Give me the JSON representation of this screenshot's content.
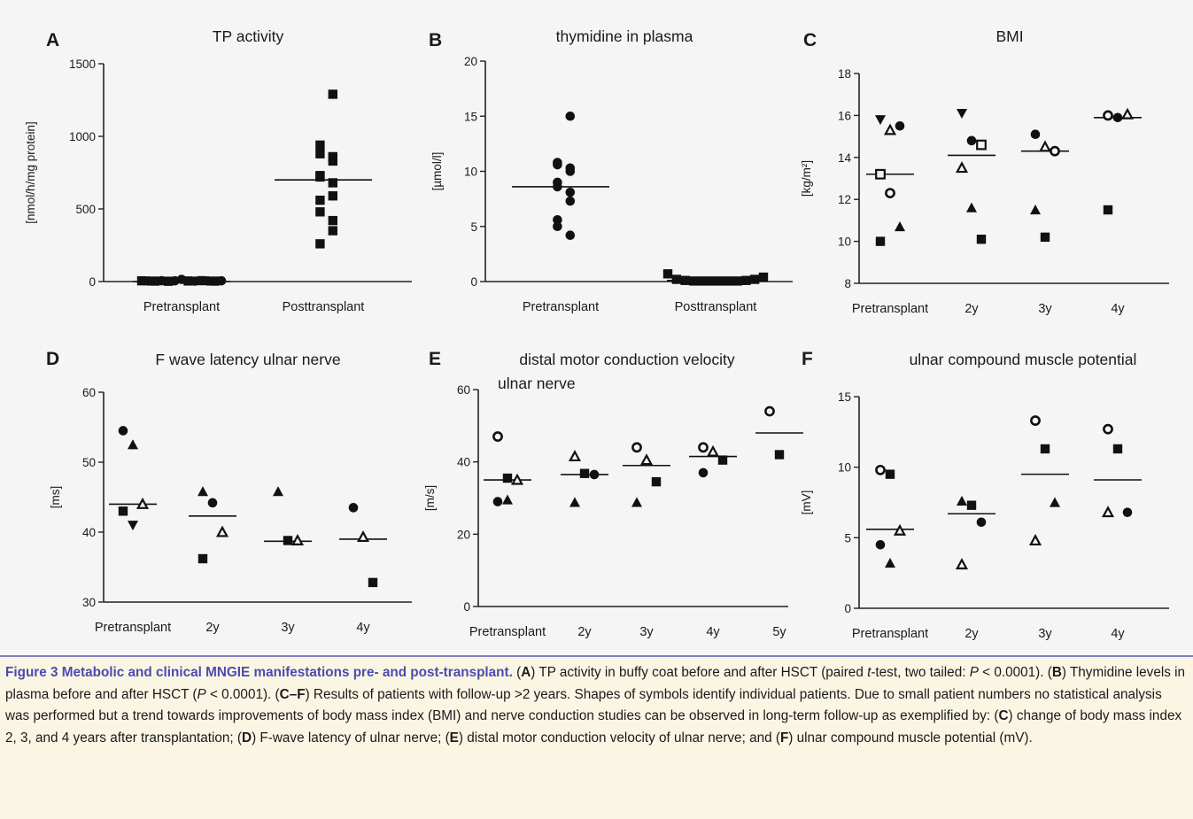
{
  "chart_data": [
    {
      "letter": "A",
      "type": "scatter",
      "title": "TP activity",
      "ylabel": "[nmol/h/mg protein]",
      "ylim": [
        0,
        1500
      ],
      "yticks": [
        0,
        500,
        1000,
        1500
      ],
      "categories": [
        "Pretransplant",
        "Posttransplant"
      ],
      "points": [
        {
          "x": 0,
          "y": 5,
          "s": "square"
        },
        {
          "x": 0,
          "y": 4,
          "s": "circle"
        },
        {
          "x": 0,
          "y": 3,
          "s": "square"
        },
        {
          "x": 0,
          "y": 6,
          "s": "circle"
        },
        {
          "x": 0,
          "y": 2,
          "s": "square"
        },
        {
          "x": 0,
          "y": 5,
          "s": "circle"
        },
        {
          "x": 0,
          "y": 15,
          "s": "circle"
        },
        {
          "x": 0,
          "y": 4,
          "s": "square"
        },
        {
          "x": 0,
          "y": 3,
          "s": "circle"
        },
        {
          "x": 0,
          "y": 6,
          "s": "square"
        },
        {
          "x": 0,
          "y": 4,
          "s": "circle"
        },
        {
          "x": 0,
          "y": 3,
          "s": "square"
        },
        {
          "x": 0,
          "y": 5,
          "s": "circle"
        },
        {
          "x": 1,
          "y": 1290,
          "s": "square"
        },
        {
          "x": 1,
          "y": 940,
          "s": "square"
        },
        {
          "x": 1,
          "y": 880,
          "s": "square"
        },
        {
          "x": 1,
          "y": 860,
          "s": "square"
        },
        {
          "x": 1,
          "y": 830,
          "s": "square"
        },
        {
          "x": 1,
          "y": 730,
          "s": "square"
        },
        {
          "x": 1,
          "y": 720,
          "s": "square"
        },
        {
          "x": 1,
          "y": 680,
          "s": "square"
        },
        {
          "x": 1,
          "y": 590,
          "s": "square"
        },
        {
          "x": 1,
          "y": 560,
          "s": "square"
        },
        {
          "x": 1,
          "y": 480,
          "s": "square"
        },
        {
          "x": 1,
          "y": 420,
          "s": "square"
        },
        {
          "x": 1,
          "y": 350,
          "s": "square"
        },
        {
          "x": 1,
          "y": 260,
          "s": "square"
        }
      ],
      "means": [
        0,
        700
      ]
    },
    {
      "letter": "B",
      "type": "scatter",
      "title": "thymidine  in plasma",
      "ylabel": "[µmol/l]",
      "ylim": [
        0,
        20
      ],
      "yticks": [
        0,
        5,
        10,
        15,
        20
      ],
      "categories": [
        "Pretransplant",
        "Posttransplant"
      ],
      "points": [
        {
          "x": 0,
          "y": 15.0,
          "s": "circle"
        },
        {
          "x": 0,
          "y": 10.8,
          "s": "circle"
        },
        {
          "x": 0,
          "y": 10.6,
          "s": "circle"
        },
        {
          "x": 0,
          "y": 10.3,
          "s": "circle"
        },
        {
          "x": 0,
          "y": 10.0,
          "s": "circle"
        },
        {
          "x": 0,
          "y": 9.0,
          "s": "circle"
        },
        {
          "x": 0,
          "y": 8.6,
          "s": "circle"
        },
        {
          "x": 0,
          "y": 8.1,
          "s": "circle"
        },
        {
          "x": 0,
          "y": 7.3,
          "s": "circle"
        },
        {
          "x": 0,
          "y": 5.6,
          "s": "circle"
        },
        {
          "x": 0,
          "y": 5.0,
          "s": "circle"
        },
        {
          "x": 0,
          "y": 4.2,
          "s": "circle"
        },
        {
          "x": 1,
          "y": 0.7,
          "s": "square"
        },
        {
          "x": 1,
          "y": 0.2,
          "s": "square"
        },
        {
          "x": 1,
          "y": 0.1,
          "s": "square"
        },
        {
          "x": 1,
          "y": 0.05,
          "s": "square"
        },
        {
          "x": 1,
          "y": 0.05,
          "s": "square"
        },
        {
          "x": 1,
          "y": 0.05,
          "s": "square"
        },
        {
          "x": 1,
          "y": 0.05,
          "s": "square"
        },
        {
          "x": 1,
          "y": 0.05,
          "s": "square"
        },
        {
          "x": 1,
          "y": 0.05,
          "s": "square"
        },
        {
          "x": 1,
          "y": 0.1,
          "s": "square"
        },
        {
          "x": 1,
          "y": 0.2,
          "s": "square"
        },
        {
          "x": 1,
          "y": 0.4,
          "s": "square"
        }
      ],
      "means": [
        8.6,
        0.1
      ]
    },
    {
      "letter": "C",
      "type": "scatter",
      "title": "BMI",
      "ylabel": "[kg/m²]",
      "ylim": [
        8,
        18
      ],
      "yticks": [
        8,
        10,
        12,
        14,
        16,
        18
      ],
      "categories": [
        "Pretransplant",
        "2y",
        "3y",
        "4y"
      ],
      "points": [
        {
          "x": 0,
          "y": 15.8,
          "s": "triangle-down"
        },
        {
          "x": 0,
          "y": 15.3,
          "s": "triangle-open"
        },
        {
          "x": 0,
          "y": 15.5,
          "s": "circle"
        },
        {
          "x": 0,
          "y": 13.2,
          "s": "square-open"
        },
        {
          "x": 0,
          "y": 12.3,
          "s": "circle-open"
        },
        {
          "x": 0,
          "y": 10.7,
          "s": "triangle"
        },
        {
          "x": 0,
          "y": 10.0,
          "s": "square"
        },
        {
          "x": 1,
          "y": 16.1,
          "s": "triangle-down"
        },
        {
          "x": 1,
          "y": 14.8,
          "s": "circle"
        },
        {
          "x": 1,
          "y": 14.6,
          "s": "square-open"
        },
        {
          "x": 1,
          "y": 13.5,
          "s": "triangle-open"
        },
        {
          "x": 1,
          "y": 11.6,
          "s": "triangle"
        },
        {
          "x": 1,
          "y": 10.1,
          "s": "square"
        },
        {
          "x": 2,
          "y": 15.1,
          "s": "circle"
        },
        {
          "x": 2,
          "y": 14.5,
          "s": "triangle-open"
        },
        {
          "x": 2,
          "y": 14.3,
          "s": "circle-open"
        },
        {
          "x": 2,
          "y": 11.5,
          "s": "triangle"
        },
        {
          "x": 2,
          "y": 10.2,
          "s": "square"
        },
        {
          "x": 3,
          "y": 16.0,
          "s": "circle-open"
        },
        {
          "x": 3,
          "y": 15.9,
          "s": "circle"
        },
        {
          "x": 3,
          "y": 16.05,
          "s": "triangle-open"
        },
        {
          "x": 3,
          "y": 11.5,
          "s": "square"
        }
      ],
      "means": [
        13.2,
        14.1,
        14.3,
        15.9
      ]
    },
    {
      "letter": "D",
      "type": "scatter",
      "title": "F wave latency ulnar nerve",
      "ylabel": "[ms]",
      "ylim": [
        30,
        60
      ],
      "yticks": [
        30,
        40,
        50,
        60
      ],
      "categories": [
        "Pretransplant",
        "2y",
        "3y",
        "4y"
      ],
      "points": [
        {
          "x": 0,
          "y": 54.5,
          "s": "circle"
        },
        {
          "x": 0,
          "y": 52.5,
          "s": "triangle"
        },
        {
          "x": 0,
          "y": 44.0,
          "s": "triangle-open"
        },
        {
          "x": 0,
          "y": 43.0,
          "s": "square"
        },
        {
          "x": 0,
          "y": 41.0,
          "s": "triangle-down"
        },
        {
          "x": 1,
          "y": 45.8,
          "s": "triangle"
        },
        {
          "x": 1,
          "y": 44.2,
          "s": "circle"
        },
        {
          "x": 1,
          "y": 40.0,
          "s": "triangle-open"
        },
        {
          "x": 1,
          "y": 36.2,
          "s": "square"
        },
        {
          "x": 2,
          "y": 45.8,
          "s": "triangle"
        },
        {
          "x": 2,
          "y": 38.8,
          "s": "square"
        },
        {
          "x": 2,
          "y": 38.8,
          "s": "triangle-open"
        },
        {
          "x": 3,
          "y": 43.5,
          "s": "circle"
        },
        {
          "x": 3,
          "y": 39.3,
          "s": "triangle-open"
        },
        {
          "x": 3,
          "y": 32.8,
          "s": "square"
        }
      ],
      "means": [
        44.0,
        42.3,
        38.7,
        39.0
      ]
    },
    {
      "letter": "E",
      "type": "scatter",
      "title": "distal motor conduction velocity",
      "title2": "ulnar nerve",
      "ylabel": "[m/s]",
      "ylim": [
        0,
        60
      ],
      "yticks": [
        0,
        20,
        40,
        60
      ],
      "categories": [
        "Pretransplant",
        "2y",
        "3y",
        "4y",
        "5y"
      ],
      "points": [
        {
          "x": 0,
          "y": 47.0,
          "s": "circle-open"
        },
        {
          "x": 0,
          "y": 35.5,
          "s": "square"
        },
        {
          "x": 0,
          "y": 35.0,
          "s": "triangle-open"
        },
        {
          "x": 0,
          "y": 29.0,
          "s": "circle"
        },
        {
          "x": 0,
          "y": 29.5,
          "s": "triangle"
        },
        {
          "x": 1,
          "y": 41.5,
          "s": "triangle-open"
        },
        {
          "x": 1,
          "y": 36.8,
          "s": "square"
        },
        {
          "x": 1,
          "y": 36.5,
          "s": "circle"
        },
        {
          "x": 1,
          "y": 28.8,
          "s": "triangle"
        },
        {
          "x": 2,
          "y": 44.0,
          "s": "circle-open"
        },
        {
          "x": 2,
          "y": 40.5,
          "s": "triangle-open"
        },
        {
          "x": 2,
          "y": 34.5,
          "s": "square"
        },
        {
          "x": 2,
          "y": 28.8,
          "s": "triangle"
        },
        {
          "x": 3,
          "y": 44.0,
          "s": "circle-open"
        },
        {
          "x": 3,
          "y": 42.8,
          "s": "triangle-open"
        },
        {
          "x": 3,
          "y": 40.5,
          "s": "square"
        },
        {
          "x": 3,
          "y": 37.0,
          "s": "circle"
        },
        {
          "x": 4,
          "y": 54.0,
          "s": "circle-open"
        },
        {
          "x": 4,
          "y": 42.0,
          "s": "square"
        }
      ],
      "means": [
        35.0,
        36.5,
        39.0,
        41.5,
        48.0
      ]
    },
    {
      "letter": "F",
      "type": "scatter",
      "title": "ulnar compound muscle potential",
      "ylabel": "[mV]",
      "ylim": [
        0,
        15
      ],
      "yticks": [
        0,
        5,
        10,
        15
      ],
      "categories": [
        "Pretransplant",
        "2y",
        "3y",
        "4y"
      ],
      "points": [
        {
          "x": 0,
          "y": 9.8,
          "s": "circle-open"
        },
        {
          "x": 0,
          "y": 9.5,
          "s": "square"
        },
        {
          "x": 0,
          "y": 5.5,
          "s": "triangle-open"
        },
        {
          "x": 0,
          "y": 4.5,
          "s": "circle"
        },
        {
          "x": 0,
          "y": 3.2,
          "s": "triangle"
        },
        {
          "x": 1,
          "y": 7.6,
          "s": "triangle"
        },
        {
          "x": 1,
          "y": 7.3,
          "s": "square"
        },
        {
          "x": 1,
          "y": 6.1,
          "s": "circle"
        },
        {
          "x": 1,
          "y": 3.1,
          "s": "triangle-open"
        },
        {
          "x": 2,
          "y": 13.3,
          "s": "circle-open"
        },
        {
          "x": 2,
          "y": 11.3,
          "s": "square"
        },
        {
          "x": 2,
          "y": 7.5,
          "s": "triangle"
        },
        {
          "x": 2,
          "y": 4.8,
          "s": "triangle-open"
        },
        {
          "x": 3,
          "y": 12.7,
          "s": "circle-open"
        },
        {
          "x": 3,
          "y": 11.3,
          "s": "square"
        },
        {
          "x": 3,
          "y": 6.8,
          "s": "circle"
        },
        {
          "x": 3,
          "y": 6.8,
          "s": "triangle-open"
        }
      ],
      "means": [
        5.6,
        6.7,
        9.5,
        9.1
      ]
    }
  ],
  "caption": {
    "heading": "Figure 3  Metabolic and clinical MNGIE manifestations pre- and post-transplant.",
    "text": [
      {
        "t": " (",
        "s": "n"
      },
      {
        "t": "A",
        "s": "b"
      },
      {
        "t": ") TP activity in buffy coat before and after HSCT (paired ",
        "s": "n"
      },
      {
        "t": "t",
        "s": "i"
      },
      {
        "t": "-test, two tailed: ",
        "s": "n"
      },
      {
        "t": "P",
        "s": "i"
      },
      {
        "t": " < 0.0001). (",
        "s": "n"
      },
      {
        "t": "B",
        "s": "b"
      },
      {
        "t": ") Thymidine levels in plasma before and after HSCT (",
        "s": "n"
      },
      {
        "t": "P",
        "s": "i"
      },
      {
        "t": " < 0.0001). (",
        "s": "n"
      },
      {
        "t": "C–F",
        "s": "b"
      },
      {
        "t": ") Results of patients with follow-up >2 years. Shapes of symbols identify individual patients. Due to small patient numbers no statistical analysis was performed but a trend towards improvements of body mass index (BMI) and nerve conduction studies can be observed in long-term follow-up as exemplified by: (",
        "s": "n"
      },
      {
        "t": "C",
        "s": "b"
      },
      {
        "t": ") change of body mass index 2, 3, and 4 years after transplantation; (",
        "s": "n"
      },
      {
        "t": "D",
        "s": "b"
      },
      {
        "t": ") F-wave latency of ulnar nerve; (",
        "s": "n"
      },
      {
        "t": "E",
        "s": "b"
      },
      {
        "t": ") distal motor conduction velocity of ulnar nerve; and (",
        "s": "n"
      },
      {
        "t": "F",
        "s": "b"
      },
      {
        "t": ") ulnar compound muscle potential (mV).",
        "s": "n"
      }
    ]
  }
}
